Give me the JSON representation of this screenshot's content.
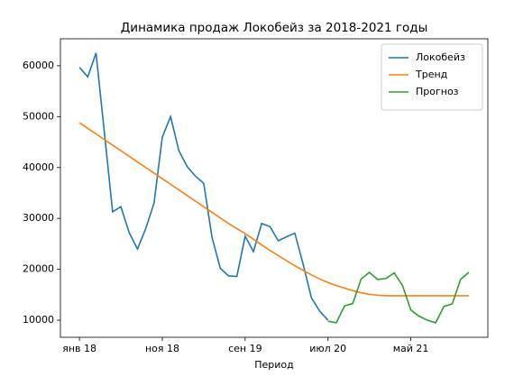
{
  "chart_data": {
    "type": "line",
    "title": "Динамика продаж Локобейз за 2018-2021 годы",
    "xlabel": "Период",
    "categories": [
      "янв 18",
      null,
      null,
      null,
      null,
      null,
      null,
      null,
      null,
      null,
      "ноя 18",
      null,
      null,
      null,
      null,
      null,
      null,
      null,
      null,
      null,
      "сен 19",
      null,
      null,
      null,
      null,
      null,
      null,
      null,
      null,
      null,
      "июл 20",
      null,
      null,
      null,
      null,
      null,
      null,
      null,
      null,
      null,
      "май 21",
      null,
      null,
      null,
      null,
      null,
      null,
      null
    ],
    "series": [
      {
        "name": "Локобейз",
        "color": "#1f77b4",
        "values": [
          59700,
          57800,
          62500,
          47000,
          31300,
          32300,
          27200,
          24000,
          28000,
          33000,
          46000,
          50000,
          43300,
          40200,
          38300,
          36900,
          26300,
          20200,
          18700,
          18600,
          26500,
          23500,
          29000,
          28400,
          25600,
          26400,
          27100,
          21000,
          14400,
          11800,
          10000,
          null,
          null,
          null,
          null,
          null,
          null,
          null,
          null,
          null,
          null,
          null,
          null,
          null,
          null,
          null,
          null,
          null
        ]
      },
      {
        "name": "Тренд",
        "color": "#ff7f0e",
        "values": [
          48800,
          47700,
          46600,
          45500,
          44400,
          43300,
          42200,
          41100,
          40000,
          38900,
          37800,
          36700,
          35600,
          34500,
          33400,
          32300,
          31200,
          30100,
          29000,
          28000,
          27000,
          25900,
          24800,
          23700,
          22700,
          21700,
          20700,
          19800,
          18900,
          18100,
          17400,
          16800,
          16300,
          15800,
          15400,
          15100,
          14900,
          14800,
          14800,
          14800,
          14800,
          14800,
          14800,
          14800,
          14800,
          14800,
          14800,
          14800
        ]
      },
      {
        "name": "Прогноз",
        "color": "#2ca02c",
        "values": [
          null,
          null,
          null,
          null,
          null,
          null,
          null,
          null,
          null,
          null,
          null,
          null,
          null,
          null,
          null,
          null,
          null,
          null,
          null,
          null,
          null,
          null,
          null,
          null,
          null,
          null,
          null,
          null,
          null,
          null,
          9800,
          9500,
          12800,
          13300,
          18100,
          19400,
          18000,
          18200,
          19300,
          16800,
          12000,
          10800,
          10000,
          9500,
          12700,
          13200,
          18000,
          19400
        ]
      }
    ],
    "ylim": [
      6640,
      65300
    ],
    "yticks": [
      10000,
      20000,
      30000,
      40000,
      50000,
      60000
    ],
    "grid": false,
    "legend": "upper right"
  }
}
